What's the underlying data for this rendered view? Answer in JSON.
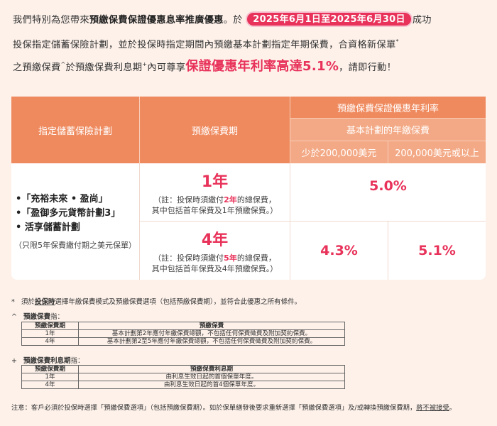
{
  "intro": {
    "line1_a": "我們特別為您帶來",
    "line1_bold": "預繳保費保證優惠息率推廣優惠",
    "line1_b": "。於",
    "date_range": "2025年6月1日至2025年6月30日",
    "line1_c": "成功",
    "line2": "投保指定儲蓄保險計劃，並於投保時指定期間內預繳基本計劃指定年期保費，合資格新保單",
    "line2_sup": "*",
    "line3_a": "之預繳保費",
    "line3_sup1": "^",
    "line3_b": "於預繳保費利息期",
    "line3_sup2": "+",
    "line3_c": "內可尊享",
    "line3_highlight": "保證優惠年利率高達5.1%",
    "line3_d": "，請即行動！"
  },
  "main_table": {
    "col_plan": "指定儲蓄保險計劃",
    "col_term": "預繳保費期",
    "col_rate": "預繳保費保證優惠年利率",
    "col_premium": "基本計劃的年繳保費",
    "col_low": "少於200,000美元",
    "col_high": "200,000美元或以上",
    "plans": [
      "•「充裕未來 • 盈尚」",
      "•「盈御多元貨幣計劃3」",
      "•  活享儲蓄計劃"
    ],
    "plan_note": "（只限5年保費繳付期之美元保單）",
    "rows": [
      {
        "term": "1年",
        "note_a": "（註：投保時須繳付",
        "note_red": "2年",
        "note_b": "的總保費，",
        "note_line2": "其中包括首年保費及1年預繳保費。）",
        "rate_all": "5.0%"
      },
      {
        "term": "4年",
        "note_a": "（註：投保時須繳付",
        "note_red": "5年",
        "note_b": "的總保費，",
        "note_line2": "其中包括首年保費及4年預繳保費。）",
        "rate_low": "4.3%",
        "rate_high": "5.1%"
      }
    ]
  },
  "notes": {
    "star_mark": "*",
    "star_a": "須於",
    "star_u": "投保時",
    "star_b": "選擇年繳保費模式及預繳保費選項（包括預繳保費期），並符合此優惠之所有條件。",
    "caret_mark": "^",
    "caret_title": "預繳保費",
    "caret_suffix": "指：",
    "t1_head": [
      "預繳保費期",
      "預繳保費"
    ],
    "t1_rows": [
      [
        "1年",
        "基本計劃第2年應付年繳保費總額，不包括任何保費徵費及附加契約保費。"
      ],
      [
        "4年",
        "基本計劃第2至5年應付年繳保費總額，不包括任何保費徵費及附加契約保費。"
      ]
    ],
    "plus_mark": "+",
    "plus_title": "預繳保費利息期",
    "plus_suffix": "指：",
    "t2_head": [
      "預繳保費期",
      "預繳保費利息期"
    ],
    "t2_rows": [
      [
        "1年",
        "由利息生效日起的首個保單年度。"
      ],
      [
        "4年",
        "由利息生效日起的首4個保單年度。"
      ]
    ],
    "footer_a": "注意：客戶必須於投保時選擇「預繳保費選項」（包括預繳保費期）。如於保單繕發後要求重新選擇「預繳保費選項」及/或轉換預繳保費期，",
    "footer_u": "將不被接受",
    "footer_b": "。"
  },
  "colors": {
    "accent": "#e8325a",
    "header": "#ef8a5e",
    "header_sub": "#f3a985",
    "background": "#fdf1ea"
  }
}
